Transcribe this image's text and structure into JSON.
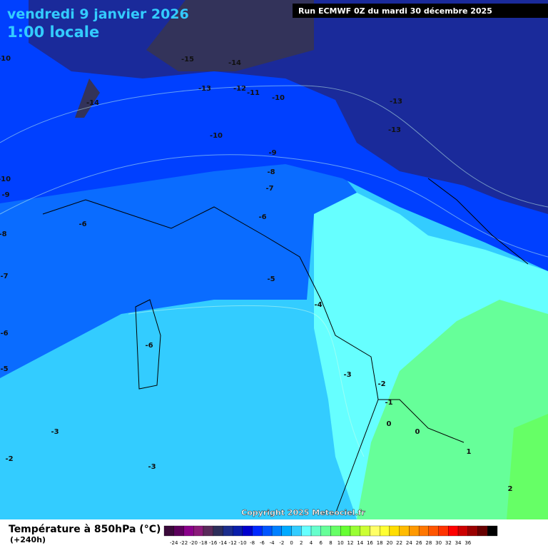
{
  "header": {
    "date": "vendredi 9 janvier 2026",
    "time": "1:00 locale",
    "run": "Run ECMWF 0Z du mardi 30 décembre 2025"
  },
  "contour_labels": [
    -15,
    -14,
    -14,
    -13,
    -12,
    -11,
    -10,
    -10,
    -13,
    -13,
    -9,
    -8,
    -7,
    -6,
    -6,
    -5,
    -4,
    -3,
    -2,
    -1,
    0,
    0,
    1,
    2,
    -3,
    -2,
    -3,
    -6,
    -5,
    -6,
    -7,
    -8,
    -9,
    -10,
    -10
  ],
  "copyright": "Copyright 2025 Meteociel.fr",
  "footer": {
    "title": "Température à 850hPa (°C)",
    "lead": "(+240h)"
  },
  "legend": {
    "labels": [
      -24,
      -22,
      -20,
      -18,
      -16,
      -14,
      -12,
      -10,
      -8,
      -6,
      -4,
      -2,
      0,
      2,
      4,
      6,
      8,
      10,
      12,
      14,
      16,
      18,
      20,
      22,
      24,
      26,
      28,
      30,
      32,
      34,
      36
    ],
    "colors": [
      "#3a0a3a",
      "#5c005c",
      "#8b008b",
      "#8b1a7a",
      "#5a2a5a",
      "#2e2e5a",
      "#1c2d8c",
      "#0a1eaa",
      "#0000cd",
      "#0028ff",
      "#0055ff",
      "#0080ff",
      "#00aaff",
      "#33ccff",
      "#66ffff",
      "#66ffcc",
      "#66ff99",
      "#66ff66",
      "#66ff33",
      "#99ff33",
      "#ccff33",
      "#ffff66",
      "#ffff33",
      "#ffdd00",
      "#ffbb00",
      "#ff9900",
      "#ff7700",
      "#ff5500",
      "#ff3300",
      "#ff0000",
      "#cc0000",
      "#990000",
      "#660000",
      "#000000"
    ]
  }
}
